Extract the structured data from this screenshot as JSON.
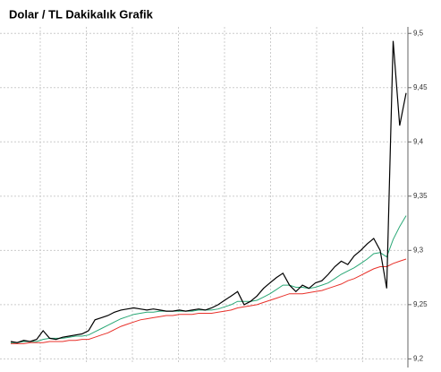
{
  "chart_data": {
    "type": "line",
    "title": "Dolar / TL Dakikalık Grafik",
    "ylim": [
      9.197,
      9.506
    ],
    "yticks": [
      {
        "value": 9.2,
        "label": "9,2"
      },
      {
        "value": 9.25,
        "label": "9,25"
      },
      {
        "value": 9.3,
        "label": "9,3"
      },
      {
        "value": 9.35,
        "label": "9,35"
      },
      {
        "value": 9.4,
        "label": "9,4"
      },
      {
        "value": 9.45,
        "label": "9,45"
      },
      {
        "value": 9.5,
        "label": "9,5"
      }
    ],
    "grid": true,
    "series": [
      {
        "color": "#e8312a",
        "values": [
          9.214,
          9.214,
          9.214,
          9.215,
          9.215,
          9.215,
          9.216,
          9.216,
          9.216,
          9.217,
          9.217,
          9.218,
          9.218,
          9.22,
          9.222,
          9.224,
          9.227,
          9.23,
          9.232,
          9.234,
          9.236,
          9.237,
          9.238,
          9.239,
          9.24,
          9.24,
          9.241,
          9.241,
          9.241,
          9.242,
          9.242,
          9.242,
          9.243,
          9.244,
          9.245,
          9.247,
          9.248,
          9.249,
          9.25,
          9.252,
          9.254,
          9.256,
          9.258,
          9.26,
          9.26,
          9.26,
          9.261,
          9.262,
          9.263,
          9.265,
          9.267,
          9.269,
          9.272,
          9.274,
          9.277,
          9.28,
          9.283,
          9.285,
          9.285,
          9.288,
          9.29,
          9.292
        ]
      },
      {
        "color": "#2aa876",
        "values": [
          9.215,
          9.215,
          9.216,
          9.216,
          9.216,
          9.218,
          9.219,
          9.219,
          9.219,
          9.22,
          9.221,
          9.221,
          9.222,
          9.225,
          9.228,
          9.231,
          9.234,
          9.237,
          9.239,
          9.241,
          9.242,
          9.243,
          9.243,
          9.244,
          9.244,
          9.244,
          9.244,
          9.244,
          9.244,
          9.245,
          9.245,
          9.245,
          9.246,
          9.248,
          9.25,
          9.253,
          9.253,
          9.253,
          9.254,
          9.257,
          9.26,
          9.264,
          9.268,
          9.268,
          9.266,
          9.266,
          9.265,
          9.266,
          9.268,
          9.27,
          9.274,
          9.278,
          9.281,
          9.284,
          9.288,
          9.292,
          9.297,
          9.298,
          9.294,
          9.31,
          9.322,
          9.332
        ]
      },
      {
        "color": "#000000",
        "values": [
          9.216,
          9.215,
          9.217,
          9.216,
          9.218,
          9.226,
          9.219,
          9.218,
          9.22,
          9.221,
          9.222,
          9.223,
          9.226,
          9.236,
          9.238,
          9.24,
          9.243,
          9.245,
          9.246,
          9.247,
          9.246,
          9.245,
          9.246,
          9.245,
          9.244,
          9.244,
          9.245,
          9.244,
          9.245,
          9.246,
          9.245,
          9.247,
          9.25,
          9.254,
          9.258,
          9.262,
          9.25,
          9.253,
          9.258,
          9.265,
          9.27,
          9.275,
          9.279,
          9.268,
          9.262,
          9.268,
          9.265,
          9.27,
          9.272,
          9.278,
          9.285,
          9.29,
          9.287,
          9.295,
          9.3,
          9.306,
          9.311,
          9.3,
          9.265,
          9.493,
          9.415,
          9.445
        ]
      }
    ]
  }
}
